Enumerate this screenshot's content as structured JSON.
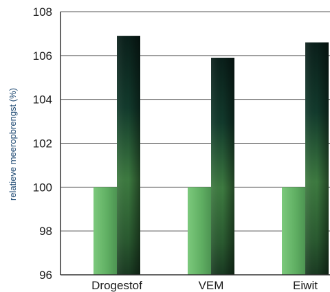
{
  "chart_data": {
    "type": "bar",
    "title": "",
    "xlabel": "",
    "ylabel": "relatieve meeropbrengst (%)",
    "categories": [
      "Drogestof",
      "VEM",
      "Eiwit"
    ],
    "series": [
      {
        "values": [
          100,
          100,
          100
        ],
        "color": "#6ab86a"
      },
      {
        "values": [
          106.9,
          105.9,
          106.6
        ],
        "color": "#0d2a22"
      }
    ],
    "ylim": [
      96,
      108
    ],
    "yticks": [
      96,
      98,
      100,
      102,
      104,
      106,
      108
    ],
    "grid": true,
    "legend": "none"
  }
}
